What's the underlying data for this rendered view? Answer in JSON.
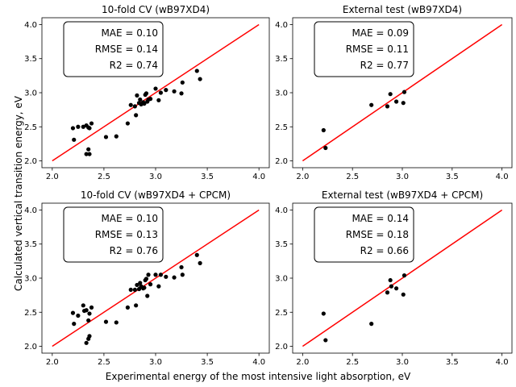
{
  "figure": {
    "supxlabel": "Experimental energy of the most intensive light absorption, eV",
    "supylabel": "Calculated vertical transition energy, eV"
  },
  "chart_data": [
    {
      "type": "scatter",
      "title": "10-fold CV (wB97XD4)",
      "xlim": [
        1.9,
        4.1
      ],
      "ylim": [
        1.9,
        4.1
      ],
      "xticks": [
        2.0,
        2.5,
        3.0,
        3.5,
        4.0
      ],
      "yticks": [
        2.0,
        2.5,
        3.0,
        3.5,
        4.0
      ],
      "stats": [
        "MAE = 0.10",
        "RMSE = 0.14",
        "R2 = 0.74"
      ],
      "line": {
        "x": [
          2.0,
          4.0
        ],
        "y": [
          2.0,
          4.0
        ],
        "color": "#ff0000"
      },
      "points": {
        "color": "#000000",
        "x": [
          2.2,
          2.21,
          2.25,
          2.3,
          2.33,
          2.35,
          2.36,
          2.38,
          2.33,
          2.35,
          2.36,
          2.52,
          2.62,
          2.73,
          2.76,
          2.8,
          2.81,
          2.82,
          2.84,
          2.85,
          2.86,
          2.88,
          2.89,
          2.9,
          2.91,
          2.92,
          2.93,
          2.95,
          3.0,
          3.03,
          3.05,
          3.1,
          3.18,
          3.25,
          3.26,
          3.4,
          3.43
        ],
        "y": [
          2.48,
          2.31,
          2.5,
          2.5,
          2.52,
          2.49,
          2.48,
          2.55,
          2.1,
          2.17,
          2.1,
          2.35,
          2.36,
          2.55,
          2.82,
          2.8,
          2.67,
          2.96,
          2.85,
          2.9,
          2.83,
          2.86,
          2.84,
          2.97,
          2.99,
          2.87,
          2.9,
          2.91,
          3.06,
          2.89,
          3.0,
          3.04,
          3.02,
          2.99,
          3.15,
          3.32,
          3.2
        ]
      }
    },
    {
      "type": "scatter",
      "title": "External test (wB97XD4)",
      "xlim": [
        1.9,
        4.1
      ],
      "ylim": [
        1.9,
        4.1
      ],
      "xticks": [
        2.0,
        2.5,
        3.0,
        3.5,
        4.0
      ],
      "yticks": [
        2.0,
        2.5,
        3.0,
        3.5,
        4.0
      ],
      "stats": [
        "MAE = 0.09",
        "RMSE = 0.11",
        "R2 = 0.77"
      ],
      "line": {
        "x": [
          2.0,
          4.0
        ],
        "y": [
          2.0,
          4.0
        ],
        "color": "#ff0000"
      },
      "points": {
        "color": "#000000",
        "x": [
          2.21,
          2.23,
          2.69,
          2.85,
          2.88,
          2.94,
          3.01,
          3.02
        ],
        "y": [
          2.45,
          2.19,
          2.82,
          2.8,
          2.98,
          2.87,
          2.85,
          3.01
        ]
      }
    },
    {
      "type": "scatter",
      "title": "10-fold CV (wB97XD4 + CPCM)",
      "xlim": [
        1.9,
        4.1
      ],
      "ylim": [
        1.9,
        4.1
      ],
      "xticks": [
        2.0,
        2.5,
        3.0,
        3.5,
        4.0
      ],
      "yticks": [
        2.0,
        2.5,
        3.0,
        3.5,
        4.0
      ],
      "stats": [
        "MAE = 0.10",
        "RMSE = 0.13",
        "R2 = 0.76"
      ],
      "line": {
        "x": [
          2.0,
          4.0
        ],
        "y": [
          2.0,
          4.0
        ],
        "color": "#ff0000"
      },
      "points": {
        "color": "#000000",
        "x": [
          2.2,
          2.21,
          2.25,
          2.3,
          2.31,
          2.33,
          2.35,
          2.36,
          2.38,
          2.33,
          2.35,
          2.36,
          2.52,
          2.62,
          2.73,
          2.76,
          2.8,
          2.81,
          2.82,
          2.84,
          2.85,
          2.86,
          2.88,
          2.89,
          2.9,
          2.91,
          2.92,
          2.93,
          2.95,
          3.0,
          3.03,
          3.05,
          3.1,
          3.18,
          3.25,
          3.26,
          3.4,
          3.43
        ],
        "y": [
          2.49,
          2.33,
          2.45,
          2.6,
          2.52,
          2.53,
          2.38,
          2.48,
          2.57,
          2.05,
          2.11,
          2.15,
          2.36,
          2.35,
          2.57,
          2.83,
          2.83,
          2.6,
          2.9,
          2.84,
          2.93,
          2.88,
          2.85,
          2.86,
          2.97,
          2.99,
          2.74,
          3.05,
          2.91,
          3.05,
          2.88,
          3.05,
          3.02,
          3.01,
          3.16,
          3.05,
          3.34,
          3.22
        ]
      }
    },
    {
      "type": "scatter",
      "title": "External test (wB97XD4 + CPCM)",
      "xlim": [
        1.9,
        4.1
      ],
      "ylim": [
        1.9,
        4.1
      ],
      "xticks": [
        2.0,
        2.5,
        3.0,
        3.5,
        4.0
      ],
      "yticks": [
        2.0,
        2.5,
        3.0,
        3.5,
        4.0
      ],
      "stats": [
        "MAE = 0.14",
        "RMSE = 0.18",
        "R2 = 0.66"
      ],
      "line": {
        "x": [
          2.0,
          4.0
        ],
        "y": [
          2.0,
          4.0
        ],
        "color": "#ff0000"
      },
      "points": {
        "color": "#000000",
        "x": [
          2.21,
          2.23,
          2.69,
          2.85,
          2.88,
          2.89,
          2.94,
          3.01,
          3.02
        ],
        "y": [
          2.48,
          2.09,
          2.33,
          2.79,
          2.97,
          2.88,
          2.85,
          2.76,
          3.04
        ]
      }
    }
  ]
}
